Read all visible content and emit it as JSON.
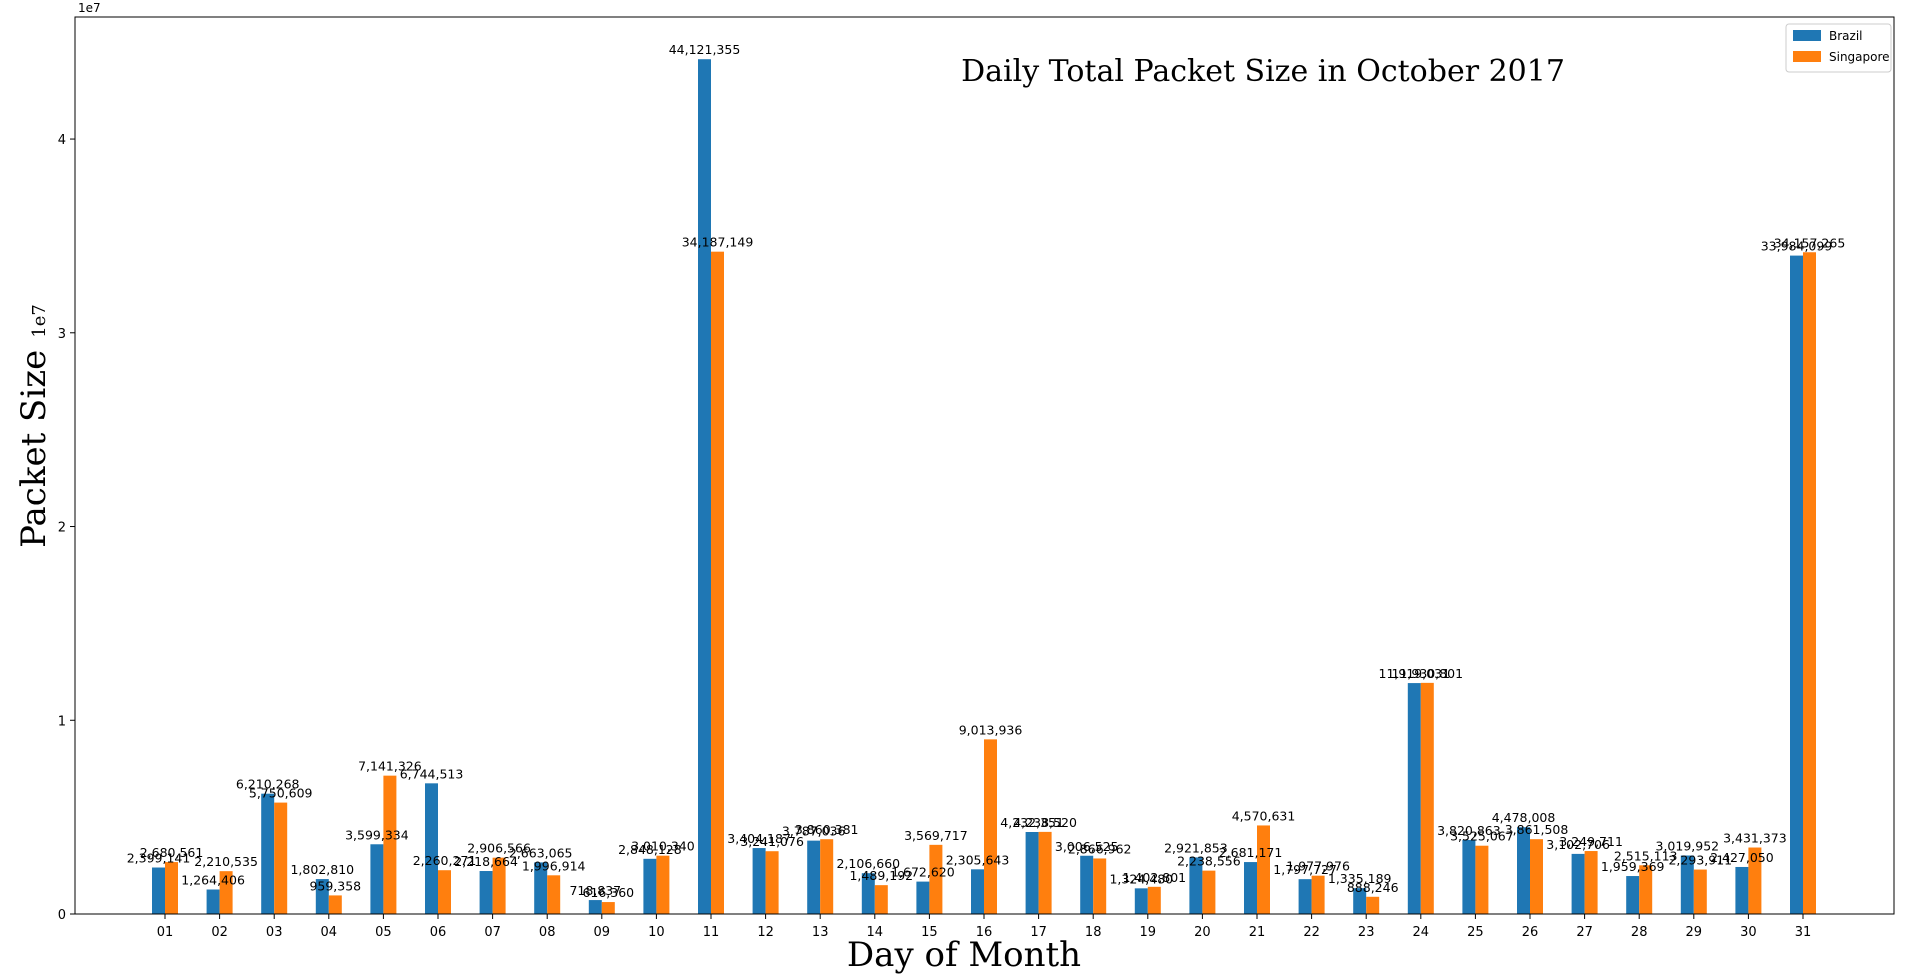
{
  "chart_data": {
    "type": "bar",
    "title": "Daily Total Packet Size in October 2017",
    "xlabel": "Day of Month",
    "ylabel": "Packet Size",
    "ylabel_suffix": "1e7",
    "offset_text": "1e7",
    "categories": [
      "01",
      "02",
      "03",
      "04",
      "05",
      "06",
      "07",
      "08",
      "09",
      "10",
      "11",
      "12",
      "13",
      "14",
      "15",
      "16",
      "17",
      "18",
      "19",
      "20",
      "21",
      "22",
      "23",
      "24",
      "25",
      "26",
      "27",
      "28",
      "29",
      "30",
      "31"
    ],
    "ylim": [
      0,
      46300000
    ],
    "yticks": [
      0,
      10000000,
      20000000,
      30000000,
      40000000
    ],
    "ytick_labels": [
      "0",
      "1",
      "2",
      "3",
      "4"
    ],
    "legend_position": "top-right",
    "grid": false,
    "series": [
      {
        "name": "Brazil",
        "color": "#1f77b4",
        "values": [
          2399141,
          1264406,
          6210268,
          1802810,
          3599334,
          6744513,
          2218664,
          2663065,
          718837,
          2848128,
          44121355,
          3404187,
          3787036,
          2106660,
          1672620,
          2305643,
          4232351,
          3006525,
          1324480,
          2921853,
          2681171,
          1797727,
          1335189,
          11919031,
          3820863,
          4478008,
          3102706,
          1959369,
          3019952,
          2427050,
          33984099
        ],
        "labels": [
          "2,399,141",
          "1,264,406",
          "6,210,268",
          "1,802,810",
          "3,599,334",
          "6,744,513",
          "2,218,664",
          "2,663,065",
          "718,837",
          "2,848,128",
          "44,121,355",
          "3,404,187",
          "3,787,036",
          "2,106,660",
          "1,672,620",
          "2,305,643",
          "4,232,351",
          "3,006,525",
          "1,324,480",
          "2,921,853",
          "2,681,171",
          "1,797,727",
          "1,335,189",
          "11,919,031",
          "3,820,863",
          "4,478,008",
          "3,102,706",
          "1,959,369",
          "3,019,952",
          "2,427,050",
          "33,984,099"
        ]
      },
      {
        "name": "Singapore",
        "color": "#ff7f0e",
        "values": [
          2680561,
          2210535,
          5750609,
          959358,
          7141326,
          2260271,
          2906566,
          1996914,
          616360,
          3010340,
          34187149,
          3241076,
          3860381,
          1489192,
          3569717,
          9013936,
          4238520,
          2866962,
          1402801,
          2238556,
          4570631,
          1977976,
          888246,
          11930801,
          3525067,
          3861508,
          3249711,
          2515113,
          2293911,
          3431373,
          34157265
        ],
        "labels": [
          "2,680,561",
          "2,210,535",
          "5,750,609",
          "959,358",
          "7,141,326",
          "2,260,271",
          "2,906,566",
          "1,996,914",
          "616,360",
          "3,010,340",
          "34,187,149",
          "3,241,076",
          "3,860,381",
          "1,489,192",
          "3,569,717",
          "9,013,936",
          "4,238,520",
          "2,866,962",
          "1,402,801",
          "2,238,556",
          "4,570,631",
          "1,977,976",
          "888,246",
          "11,930,801",
          "3,525,067",
          "3,861,508",
          "3,249,711",
          "2,515,113",
          "2,293,911",
          "3,431,373",
          "34,157,265"
        ]
      }
    ]
  }
}
